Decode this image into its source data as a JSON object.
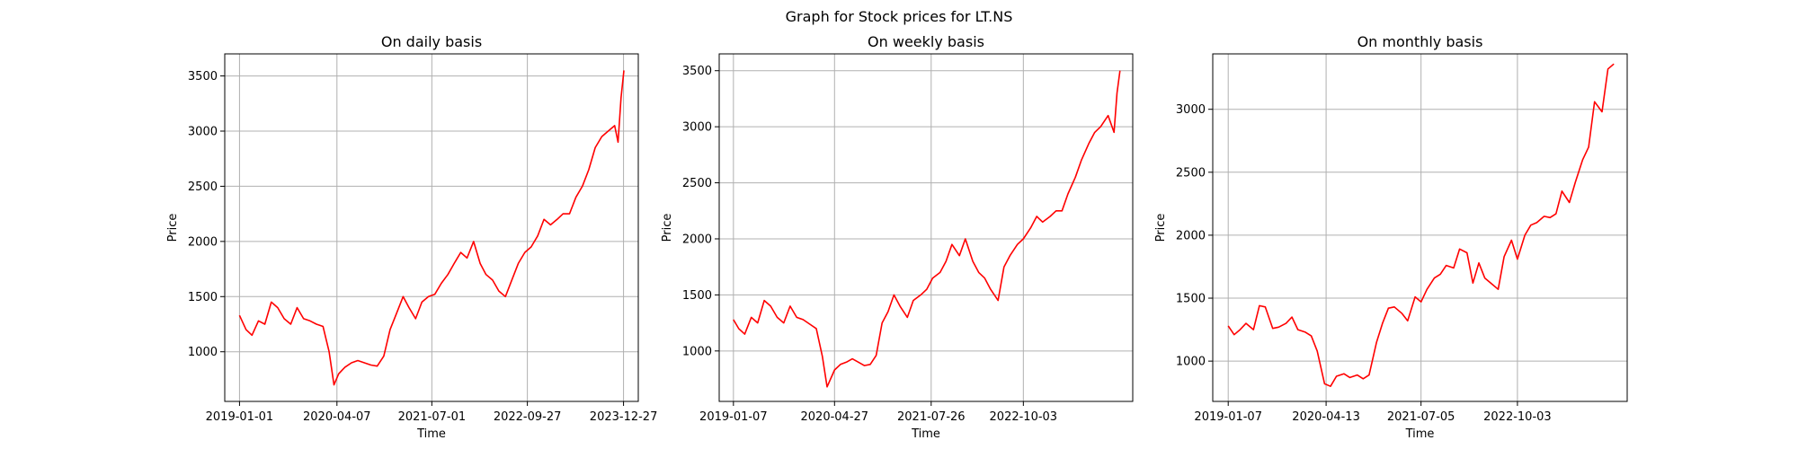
{
  "figure": {
    "suptitle": "Graph for Stock prices for LT.NS",
    "line_color": "#ff0000"
  },
  "chart_data": [
    {
      "type": "line",
      "title": "On daily basis",
      "xlabel": "Time",
      "ylabel": "Price",
      "x_ticks": [
        "2019-01-01",
        "2020-04-07",
        "2021-07-01",
        "2022-09-27",
        "2023-12-27"
      ],
      "y_ticks": [
        1000,
        1500,
        2000,
        2500,
        3000,
        3500
      ],
      "xlim": [
        "2018-10-23",
        "2024-03-06"
      ],
      "ylim": [
        550,
        3700
      ],
      "grid": true,
      "series": [
        {
          "x": [
            "2019-01-01",
            "2019-02-01",
            "2019-03-01",
            "2019-04-01",
            "2019-05-01",
            "2019-06-01",
            "2019-07-01",
            "2019-08-01",
            "2019-09-01",
            "2019-10-01",
            "2019-11-01",
            "2019-12-01",
            "2020-01-01",
            "2020-02-01",
            "2020-03-01",
            "2020-03-24",
            "2020-04-15",
            "2020-05-15",
            "2020-06-15",
            "2020-07-15",
            "2020-08-15",
            "2020-09-15",
            "2020-10-15",
            "2020-11-15",
            "2020-12-15",
            "2021-01-15",
            "2021-02-15",
            "2021-03-15",
            "2021-04-15",
            "2021-05-15",
            "2021-06-15",
            "2021-07-15",
            "2021-08-15",
            "2021-09-15",
            "2021-10-15",
            "2021-11-15",
            "2021-12-15",
            "2022-01-15",
            "2022-02-15",
            "2022-03-15",
            "2022-04-15",
            "2022-05-15",
            "2022-06-15",
            "2022-07-15",
            "2022-08-15",
            "2022-09-15",
            "2022-10-15",
            "2022-11-15",
            "2022-12-15",
            "2023-01-15",
            "2023-02-15",
            "2023-03-15",
            "2023-04-15",
            "2023-05-15",
            "2023-06-15",
            "2023-07-15",
            "2023-08-15",
            "2023-09-15",
            "2023-10-15",
            "2023-11-15",
            "2023-12-01",
            "2023-12-15",
            "2023-12-29"
          ],
          "y": [
            1330,
            1200,
            1150,
            1280,
            1250,
            1450,
            1400,
            1300,
            1250,
            1400,
            1300,
            1280,
            1250,
            1230,
            1000,
            700,
            800,
            860,
            900,
            920,
            900,
            880,
            870,
            960,
            1200,
            1350,
            1500,
            1400,
            1300,
            1450,
            1500,
            1520,
            1620,
            1700,
            1800,
            1900,
            1850,
            2000,
            1800,
            1700,
            1650,
            1550,
            1500,
            1650,
            1800,
            1900,
            1950,
            2050,
            2200,
            2150,
            2200,
            2250,
            2250,
            2400,
            2500,
            2650,
            2850,
            2950,
            3000,
            3050,
            2900,
            3300,
            3550
          ]
        }
      ]
    },
    {
      "type": "line",
      "title": "On weekly basis",
      "xlabel": "Time",
      "ylabel": "Price",
      "x_ticks": [
        "2019-01-07",
        "2020-04-27",
        "2021-07-26",
        "2022-10-03"
      ],
      "y_ticks": [
        1000,
        1500,
        2000,
        2500,
        3000,
        3500
      ],
      "xlim": [
        "2018-11-01",
        "2024-03-01"
      ],
      "ylim": [
        550,
        3650
      ],
      "grid": true,
      "series": [
        {
          "x": [
            "2019-01-07",
            "2019-02-01",
            "2019-03-01",
            "2019-04-01",
            "2019-05-01",
            "2019-06-01",
            "2019-07-01",
            "2019-08-01",
            "2019-09-01",
            "2019-10-01",
            "2019-11-01",
            "2019-12-01",
            "2020-01-01",
            "2020-02-01",
            "2020-03-01",
            "2020-03-23",
            "2020-04-27",
            "2020-05-25",
            "2020-06-22",
            "2020-07-20",
            "2020-08-17",
            "2020-09-14",
            "2020-10-12",
            "2020-11-09",
            "2020-12-07",
            "2021-01-04",
            "2021-02-01",
            "2021-03-01",
            "2021-04-05",
            "2021-05-03",
            "2021-06-07",
            "2021-07-05",
            "2021-08-02",
            "2021-09-06",
            "2021-10-04",
            "2021-11-01",
            "2021-12-06",
            "2022-01-03",
            "2022-02-07",
            "2022-03-07",
            "2022-04-04",
            "2022-05-02",
            "2022-06-06",
            "2022-07-04",
            "2022-08-01",
            "2022-09-05",
            "2022-10-03",
            "2022-11-07",
            "2022-12-05",
            "2023-01-02",
            "2023-02-06",
            "2023-03-06",
            "2023-04-03",
            "2023-05-01",
            "2023-06-05",
            "2023-07-03",
            "2023-08-07",
            "2023-09-04",
            "2023-10-02",
            "2023-11-06",
            "2023-12-04",
            "2023-12-18",
            "2024-01-01"
          ],
          "y": [
            1280,
            1200,
            1150,
            1300,
            1250,
            1450,
            1400,
            1300,
            1250,
            1400,
            1300,
            1280,
            1240,
            1200,
            950,
            680,
            830,
            880,
            900,
            930,
            900,
            870,
            880,
            960,
            1250,
            1350,
            1500,
            1400,
            1300,
            1450,
            1500,
            1550,
            1650,
            1700,
            1800,
            1950,
            1850,
            2000,
            1800,
            1700,
            1650,
            1550,
            1450,
            1750,
            1850,
            1950,
            2000,
            2100,
            2200,
            2150,
            2200,
            2250,
            2250,
            2400,
            2550,
            2700,
            2850,
            2950,
            3000,
            3100,
            2950,
            3300,
            3500
          ]
        }
      ]
    },
    {
      "type": "line",
      "title": "On monthly basis",
      "xlabel": "Time",
      "ylabel": "Price",
      "x_ticks": [
        "2019-01-07",
        "2020-04-13",
        "2021-07-05",
        "2022-10-03"
      ],
      "y_ticks": [
        1000,
        1500,
        2000,
        2500,
        3000
      ],
      "xlim": [
        "2018-10-26",
        "2024-03-04"
      ],
      "ylim": [
        680,
        3440
      ],
      "grid": true,
      "series": [
        {
          "x": [
            "2019-01-07",
            "2019-02-04",
            "2019-03-04",
            "2019-04-01",
            "2019-05-06",
            "2019-06-03",
            "2019-07-01",
            "2019-08-05",
            "2019-09-02",
            "2019-10-07",
            "2019-11-04",
            "2019-12-02",
            "2020-01-06",
            "2020-02-03",
            "2020-03-02",
            "2020-04-06",
            "2020-05-04",
            "2020-06-01",
            "2020-07-06",
            "2020-08-03",
            "2020-09-07",
            "2020-10-05",
            "2020-11-02",
            "2020-12-07",
            "2021-01-04",
            "2021-02-01",
            "2021-03-01",
            "2021-04-05",
            "2021-05-03",
            "2021-06-07",
            "2021-07-05",
            "2021-08-02",
            "2021-09-06",
            "2021-10-04",
            "2021-11-01",
            "2021-12-06",
            "2022-01-03",
            "2022-02-07",
            "2022-03-07",
            "2022-04-04",
            "2022-05-02",
            "2022-06-06",
            "2022-07-04",
            "2022-08-01",
            "2022-09-05",
            "2022-10-03",
            "2022-11-07",
            "2022-12-05",
            "2023-01-02",
            "2023-02-06",
            "2023-03-06",
            "2023-04-03",
            "2023-05-01",
            "2023-06-05",
            "2023-07-03",
            "2023-08-07",
            "2023-09-04",
            "2023-10-02",
            "2023-11-06",
            "2023-12-04",
            "2024-01-01"
          ],
          "y": [
            1280,
            1210,
            1250,
            1300,
            1250,
            1440,
            1430,
            1260,
            1270,
            1300,
            1350,
            1250,
            1230,
            1200,
            1080,
            820,
            800,
            880,
            900,
            870,
            890,
            860,
            890,
            1150,
            1300,
            1420,
            1430,
            1380,
            1320,
            1510,
            1470,
            1570,
            1660,
            1690,
            1760,
            1740,
            1890,
            1860,
            1620,
            1780,
            1660,
            1610,
            1570,
            1830,
            1960,
            1810,
            2000,
            2080,
            2100,
            2150,
            2140,
            2170,
            2350,
            2260,
            2420,
            2600,
            2700,
            3060,
            2980,
            3320,
            3360
          ]
        }
      ]
    }
  ]
}
